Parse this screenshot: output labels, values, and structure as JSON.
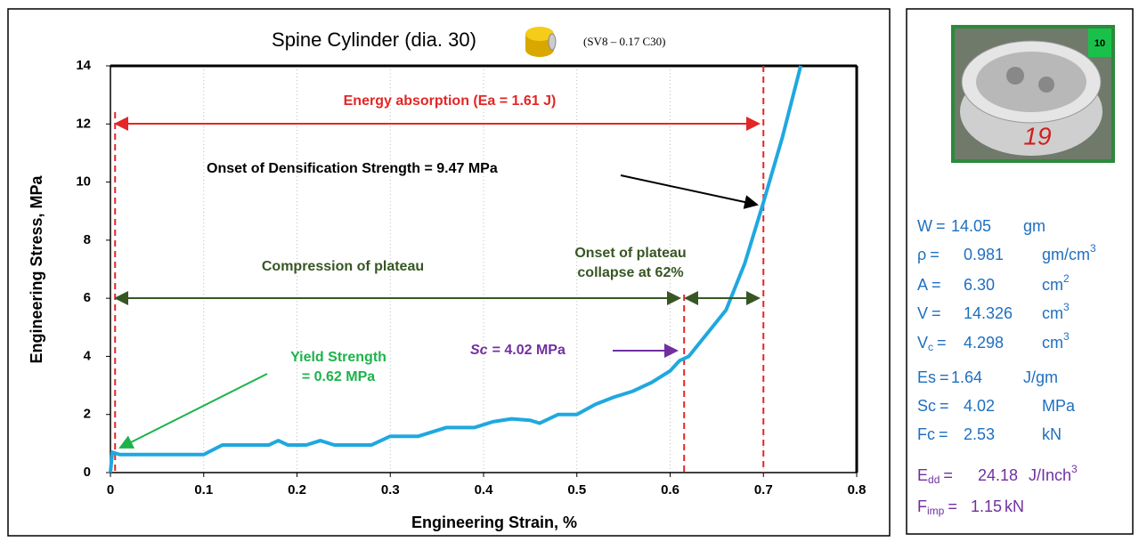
{
  "chart_data": {
    "type": "line",
    "title": "Spine Cylinder (dia. 30)",
    "subtitle": "(SV8 – 0.17 C30)",
    "x_label": "Engineering Strain, %",
    "y_label": "Engineering Stress, MPa",
    "x": [
      0,
      0.002,
      0.01,
      0.05,
      0.1,
      0.12,
      0.17,
      0.18,
      0.19,
      0.21,
      0.225,
      0.24,
      0.28,
      0.3,
      0.33,
      0.35,
      0.36,
      0.39,
      0.41,
      0.43,
      0.45,
      0.46,
      0.48,
      0.5,
      0.52,
      0.54,
      0.56,
      0.58,
      0.6,
      0.61,
      0.62,
      0.64,
      0.66,
      0.68,
      0.7,
      0.72,
      0.74
    ],
    "series": [
      {
        "color": "#1fa8e0",
        "values": [
          0,
          0.7,
          0.62,
          0.62,
          0.62,
          0.95,
          0.95,
          1.1,
          0.95,
          0.95,
          1.1,
          0.95,
          0.95,
          1.25,
          1.25,
          1.45,
          1.55,
          1.55,
          1.75,
          1.85,
          1.8,
          1.7,
          2.0,
          2.0,
          2.35,
          2.6,
          2.8,
          3.1,
          3.5,
          3.85,
          4.0,
          4.8,
          5.6,
          7.2,
          9.3,
          11.5,
          14
        ]
      }
    ],
    "xlim": [
      0,
      0.8
    ],
    "ylim": [
      0,
      14
    ],
    "xticks": [
      0,
      0.1,
      0.2,
      0.3,
      0.4,
      0.5,
      0.6,
      0.7,
      0.8
    ],
    "yticks": [
      0,
      2,
      4,
      6,
      8,
      10,
      12,
      14
    ],
    "grid": "x",
    "reference_lines": [
      0.005,
      0.615,
      0.7
    ],
    "annotations": [
      {
        "text": "Energy absorption (Ea = 1.61 J)"
      },
      {
        "text": "Onset of Densification Strength = 9.47 MPa"
      },
      {
        "text": "Compression of plateau"
      },
      {
        "text": "Onset of plateau"
      },
      {
        "text": "collapse at 62%"
      },
      {
        "text": "Yield Strength"
      },
      {
        "text": "= 0.62 MPa"
      },
      {
        "prefix": "Sc",
        "text": "= 4.02 MPa"
      }
    ]
  },
  "panel": {
    "photo": {
      "tag": "10",
      "mark": "19"
    },
    "groups": [
      [
        {
          "label": "W",
          "eq": "=",
          "value": "14.05",
          "unit": "gm"
        },
        {
          "label": "ρ",
          "eq": "=",
          "value": "0.981",
          "unit": "gm/cm",
          "unit_sup": "3"
        },
        {
          "label": "A",
          "eq": "=",
          "value": "6.30",
          "unit": "cm",
          "unit_sup": "2"
        },
        {
          "label": "V",
          "eq": "=",
          "value": "14.326",
          "unit": "cm",
          "unit_sup": "3"
        },
        {
          "label": "V",
          "label_sub": "c",
          "eq": "=",
          "value": "4.298",
          "unit": "cm",
          "unit_sup": "3"
        }
      ],
      [
        {
          "label": "Es",
          "eq": "=",
          "value": "1.64",
          "unit": "J/gm"
        },
        {
          "label": "Sc",
          "eq": "=",
          "value": "4.02",
          "unit": "MPa"
        },
        {
          "label": "Fc",
          "eq": "=",
          "value": "2.53",
          "unit": "kN"
        }
      ],
      [
        {
          "label": "E",
          "label_sub": "dd",
          "eq": "=",
          "value": "24.18",
          "unit": "J/Inch",
          "unit_sup": "3"
        },
        {
          "label": "F",
          "label_sub": "imp",
          "eq": "=",
          "value": "1.15",
          "unit": "kN"
        }
      ]
    ]
  }
}
